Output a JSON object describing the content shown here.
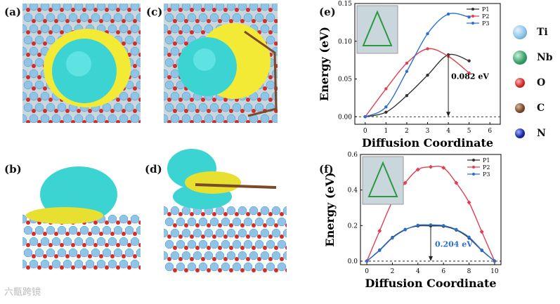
{
  "panel_labels": {
    "a": "(a)",
    "b": "(b)",
    "c": "(c)",
    "d": "(d)",
    "e": "(e)",
    "f": "(f)"
  },
  "atom_legend": [
    {
      "label": "Ti",
      "color": "#8dc4e8"
    },
    {
      "label": "Nb",
      "color": "#3aa06a"
    },
    {
      "label": "O",
      "color": "#d42a2a"
    },
    {
      "label": "C",
      "color": "#7a4a2a"
    },
    {
      "label": "N",
      "color": "#1a2aa8"
    }
  ],
  "colors": {
    "isosurface_cyan": "#3cd3d3",
    "isosurface_yellow": "#e8e030",
    "p1": "#333333",
    "p2": "#e04050",
    "p3": "#2a6fd0"
  },
  "watermark": "六甑跨镜",
  "chart_data": [
    {
      "type": "line",
      "panel": "(e)",
      "xlabel": "Diffusion Coordinate",
      "ylabel": "Energy (eV)",
      "xlim": [
        -0.5,
        6.5
      ],
      "ylim": [
        -0.01,
        0.15
      ],
      "xticks": [
        "0",
        "1",
        "2",
        "3",
        "4",
        "5",
        "6"
      ],
      "yticks": [
        "0.00",
        "0.05",
        "0.10",
        "0.15"
      ],
      "x": [
        0,
        1,
        2,
        3,
        4,
        5
      ],
      "series": [
        {
          "name": "P1",
          "values": [
            0,
            0.006,
            0.028,
            0.055,
            0.082,
            0.074
          ]
        },
        {
          "name": "P2",
          "values": [
            0,
            0.037,
            0.071,
            0.09,
            0.08,
            0.058
          ]
        },
        {
          "name": "P3",
          "values": [
            0,
            0.013,
            0.06,
            0.11,
            0.136,
            0.132
          ]
        }
      ],
      "annotation": "0.082 eV",
      "legend": "top-right"
    },
    {
      "type": "line",
      "panel": "(f)",
      "xlabel": "Diffusion Coordinate",
      "ylabel": "Energy (eV)",
      "xlim": [
        -0.5,
        10.5
      ],
      "ylim": [
        -0.02,
        0.6
      ],
      "xticks": [
        "0",
        "2",
        "4",
        "6",
        "8",
        "10"
      ],
      "yticks": [
        "0.0",
        "0.2",
        "0.4",
        "0.6"
      ],
      "x": [
        0,
        1,
        2,
        3,
        4,
        5,
        6,
        7,
        8,
        9,
        10
      ],
      "series": [
        {
          "name": "P1",
          "values": [
            0,
            0.062,
            0.133,
            0.178,
            0.198,
            0.198,
            0.196,
            0.175,
            0.13,
            0.06,
            0
          ]
        },
        {
          "name": "P2",
          "values": [
            0,
            0.17,
            0.335,
            0.44,
            0.515,
            0.53,
            0.525,
            0.44,
            0.33,
            0.165,
            0
          ]
        },
        {
          "name": "P3",
          "values": [
            0,
            0.06,
            0.13,
            0.176,
            0.202,
            0.204,
            0.2,
            0.178,
            0.135,
            0.062,
            0
          ]
        }
      ],
      "annotation": "0.204 eV",
      "legend": "top-right"
    }
  ]
}
